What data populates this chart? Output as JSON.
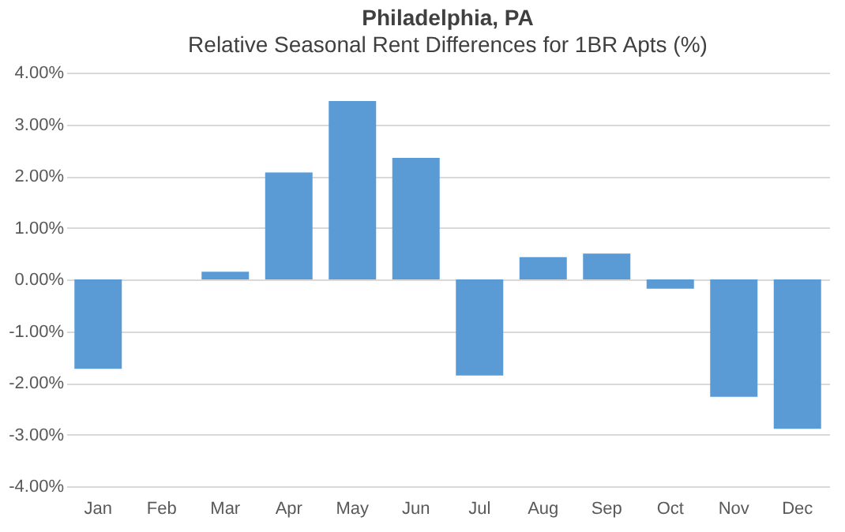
{
  "chart_data": {
    "type": "bar",
    "title": "Philadelphia, PA",
    "subtitle": "Relative Seasonal Rent Differences for 1BR Apts (%)",
    "categories": [
      "Jan",
      "Feb",
      "Mar",
      "Apr",
      "May",
      "Jun",
      "Jul",
      "Aug",
      "Sep",
      "Oct",
      "Nov",
      "Dec"
    ],
    "values": [
      -1.73,
      0,
      0.15,
      2.07,
      3.45,
      2.35,
      -1.86,
      0.43,
      0.5,
      -0.18,
      -2.27,
      -2.89
    ],
    "color": "#5b9bd5",
    "ylim": [
      -4,
      4
    ],
    "yticks": [
      {
        "value": -4,
        "label": "-4.00%"
      },
      {
        "value": -3,
        "label": "-3.00%"
      },
      {
        "value": -2,
        "label": "-2.00%"
      },
      {
        "value": -1,
        "label": "-1.00%"
      },
      {
        "value": 0,
        "label": "0.00%"
      },
      {
        "value": 1,
        "label": "1.00%"
      },
      {
        "value": 2,
        "label": "2.00%"
      },
      {
        "value": 3,
        "label": "3.00%"
      },
      {
        "value": 4,
        "label": "4.00%"
      }
    ],
    "grid": "y"
  }
}
